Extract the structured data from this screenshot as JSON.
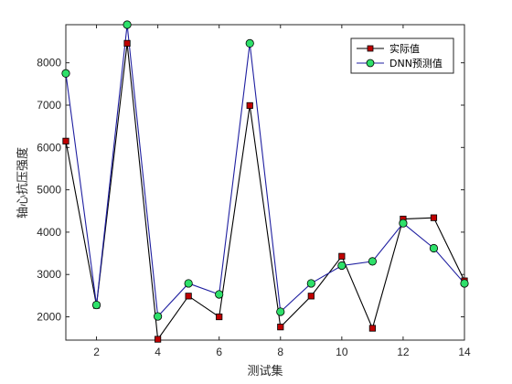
{
  "chart_data": {
    "type": "line",
    "title": "",
    "xlabel": "测试集",
    "ylabel": "轴心抗压强度",
    "xlim": [
      1,
      14
    ],
    "ylim": [
      1450,
      8900
    ],
    "x_ticks": [
      2,
      4,
      6,
      8,
      10,
      12,
      14
    ],
    "y_ticks": [
      2000,
      3000,
      4000,
      5000,
      6000,
      7000,
      8000
    ],
    "grid": false,
    "legend_position": "top-right",
    "x": [
      1,
      2,
      3,
      4,
      5,
      6,
      7,
      8,
      9,
      10,
      11,
      12,
      13,
      14
    ],
    "series": [
      {
        "name": "实际值",
        "color": "#000000",
        "marker": "square",
        "marker_color": "#c00000",
        "values": [
          6150,
          2270,
          8460,
          1470,
          2490,
          2000,
          6990,
          1760,
          2490,
          3430,
          1730,
          4310,
          4340,
          2850
        ]
      },
      {
        "name": "DNN预测值",
        "color": "#1f1fa0",
        "marker": "circle",
        "marker_color": "#2ee06a",
        "values": [
          7750,
          2280,
          8900,
          2010,
          2790,
          2530,
          8460,
          2120,
          2790,
          3210,
          3310,
          4210,
          3620,
          2790
        ]
      }
    ]
  }
}
